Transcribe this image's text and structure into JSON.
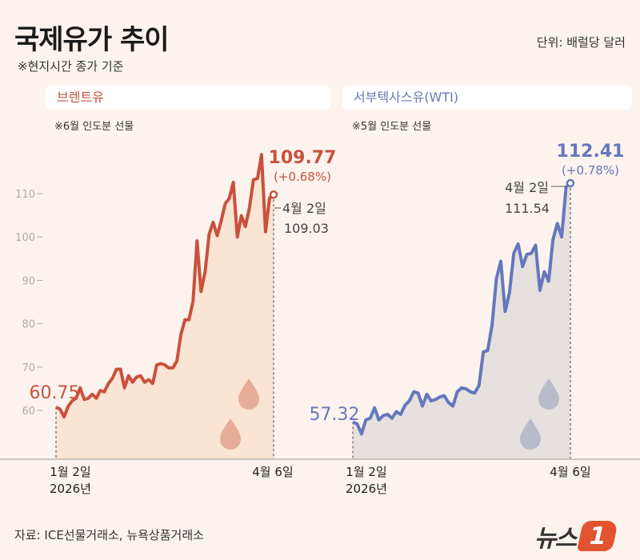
{
  "header": {
    "title": "국제유가 추이",
    "subtitle": "※현지시간 종가 기준",
    "unit": "단위: 배럴당 달러"
  },
  "source": "자료: ICE선물거래소, 뉴욕상품거래소",
  "logo_text": "뉴스1",
  "colors": {
    "background": "#fcf3ee",
    "brent": "#c9513d",
    "brent_fill": "#fae4d3",
    "wti": "#6577bd",
    "wti_fill": "#e6e1de",
    "drop_brent": "#e5ad98",
    "drop_wti": "#b8bbc9"
  },
  "chart_data": [
    {
      "type": "area",
      "name": "브렌트유",
      "note": "※6월 인도분 선물",
      "ylim": [
        50,
        120
      ],
      "yticks": [
        60,
        70,
        80,
        90,
        100,
        110
      ],
      "xticks": [
        "1월 2일",
        "4월 6일"
      ],
      "x_start_year": "2026년",
      "start_label": "60.75",
      "end_label": "109.77",
      "end_change": "(+0.68%)",
      "annotation": {
        "date": "4월 2일",
        "value": "109.03"
      },
      "values": [
        60.75,
        60.3,
        58.5,
        60.9,
        62.2,
        62.8,
        65.2,
        62.5,
        62.8,
        63.7,
        62.8,
        64.6,
        64.3,
        66.2,
        67.4,
        69.5,
        69.5,
        65.2,
        68.0,
        66.5,
        67.7,
        68.0,
        66.5,
        67.1,
        66.2,
        70.5,
        70.8,
        70.5,
        69.8,
        69.8,
        71.4,
        77.5,
        80.9,
        80.9,
        85.2,
        99.1,
        87.4,
        92.0,
        100.6,
        103.4,
        100.3,
        103.7,
        107.7,
        108.9,
        112.6,
        100.0,
        104.9,
        102.4,
        106.7,
        113.2,
        113.5,
        119.0,
        101.2,
        109.03,
        109.77
      ]
    },
    {
      "type": "area",
      "name": "서부텍사스유(WTI)",
      "note": "※5월 인도분 선물",
      "ylim": [
        50,
        120
      ],
      "xticks": [
        "1월 2일",
        "4월 6일"
      ],
      "x_start_year": "2026년",
      "start_label": "57.32",
      "end_label": "112.41",
      "end_change": "(+0.78%)",
      "annotation": {
        "date": "4월 2일",
        "value": "111.54"
      },
      "values": [
        57.32,
        56.9,
        54.6,
        57.8,
        58.2,
        60.6,
        57.8,
        58.8,
        59.1,
        58.2,
        59.7,
        59.1,
        61.2,
        62.2,
        64.3,
        64.0,
        61.0,
        63.7,
        62.2,
        62.5,
        63.1,
        63.4,
        61.8,
        61.0,
        64.3,
        65.2,
        65.0,
        64.3,
        64.0,
        65.8,
        73.5,
        73.8,
        79.7,
        90.4,
        94.4,
        82.8,
        87.1,
        96.3,
        98.4,
        93.2,
        96.0,
        96.2,
        98.1,
        87.7,
        92.0,
        89.8,
        99.4,
        103.1,
        100.0,
        111.54,
        112.41
      ]
    }
  ]
}
